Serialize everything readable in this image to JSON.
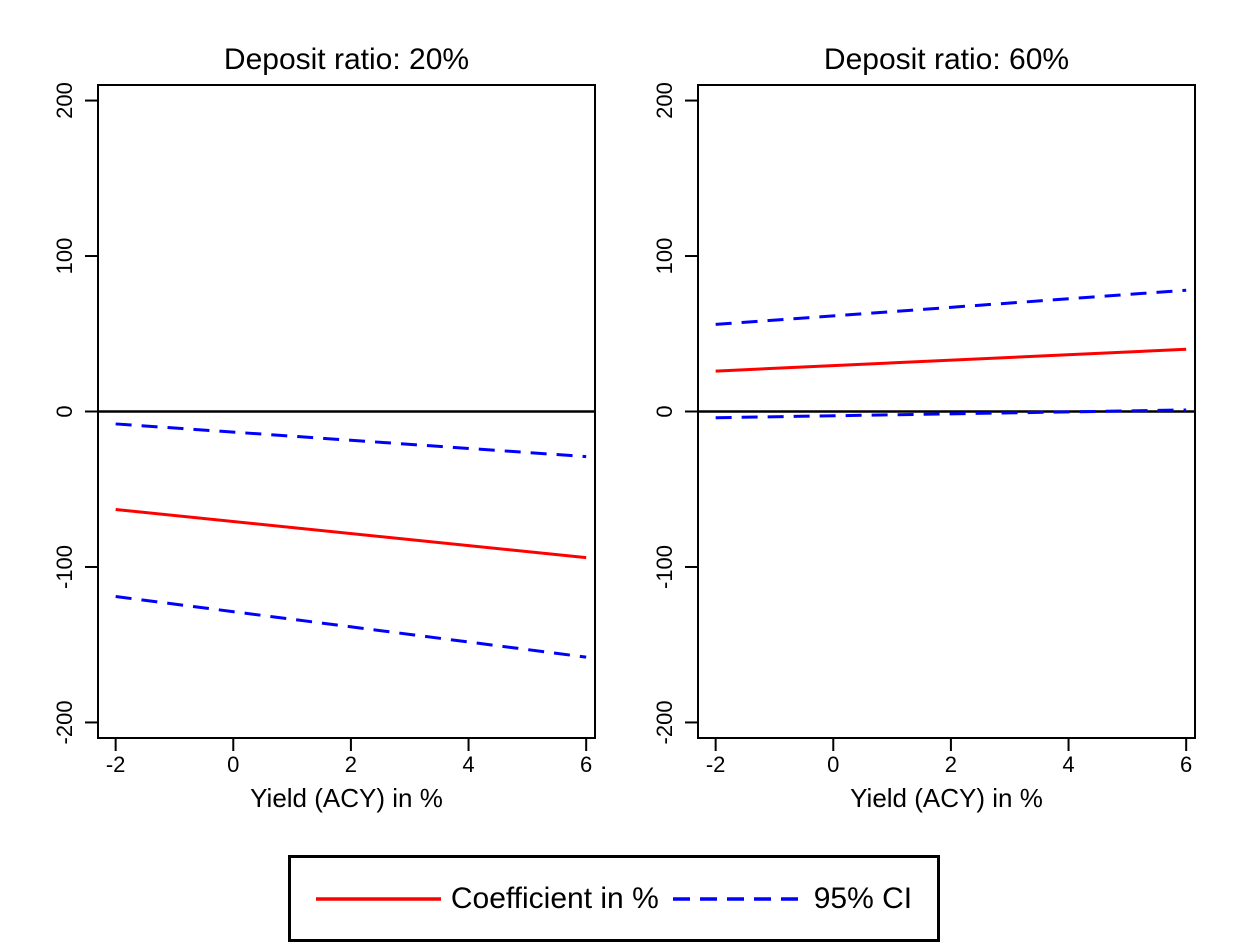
{
  "figure": {
    "background": "#ffffff",
    "text_color": "#000000"
  },
  "chart_data": [
    {
      "type": "line",
      "title": "Deposit ratio: 20%",
      "xlabel": "Yield (ACY) in %",
      "ylabel": "",
      "xlim": [
        -2.3,
        6.15
      ],
      "ylim": [
        -210,
        210
      ],
      "xticks": [
        -2,
        0,
        2,
        4,
        6
      ],
      "yticks": [
        -200,
        -100,
        0,
        100,
        200
      ],
      "grid": false,
      "reference_line_y": 0,
      "series": [
        {
          "name": "Coefficient in %",
          "role": "coefficient",
          "color": "#ff0000",
          "dash": "solid",
          "x": [
            -2,
            6
          ],
          "y": [
            -63,
            -94
          ]
        },
        {
          "name": "95% CI upper",
          "role": "ci-upper",
          "color": "#0000ff",
          "dash": "dashed",
          "x": [
            -2,
            6
          ],
          "y": [
            -8,
            -29
          ]
        },
        {
          "name": "95% CI lower",
          "role": "ci-lower",
          "color": "#0000ff",
          "dash": "dashed",
          "x": [
            -2,
            6
          ],
          "y": [
            -119,
            -158
          ]
        }
      ]
    },
    {
      "type": "line",
      "title": "Deposit ratio: 60%",
      "xlabel": "Yield (ACY) in %",
      "ylabel": "",
      "xlim": [
        -2.3,
        6.15
      ],
      "ylim": [
        -210,
        210
      ],
      "xticks": [
        -2,
        0,
        2,
        4,
        6
      ],
      "yticks": [
        -200,
        -100,
        0,
        100,
        200
      ],
      "grid": false,
      "reference_line_y": 0,
      "series": [
        {
          "name": "Coefficient in %",
          "role": "coefficient",
          "color": "#ff0000",
          "dash": "solid",
          "x": [
            -2,
            6
          ],
          "y": [
            26,
            40
          ]
        },
        {
          "name": "95% CI upper",
          "role": "ci-upper",
          "color": "#0000ff",
          "dash": "dashed",
          "x": [
            -2,
            6
          ],
          "y": [
            56,
            78
          ]
        },
        {
          "name": "95% CI lower",
          "role": "ci-lower",
          "color": "#0000ff",
          "dash": "dashed",
          "x": [
            -2,
            6
          ],
          "y": [
            -4,
            1
          ]
        }
      ]
    }
  ],
  "legend": {
    "items": [
      {
        "label": "Coefficient in %",
        "color": "#ff0000",
        "dash": "solid"
      },
      {
        "label": "95% CI",
        "color": "#0000ff",
        "dash": "dashed"
      }
    ]
  }
}
